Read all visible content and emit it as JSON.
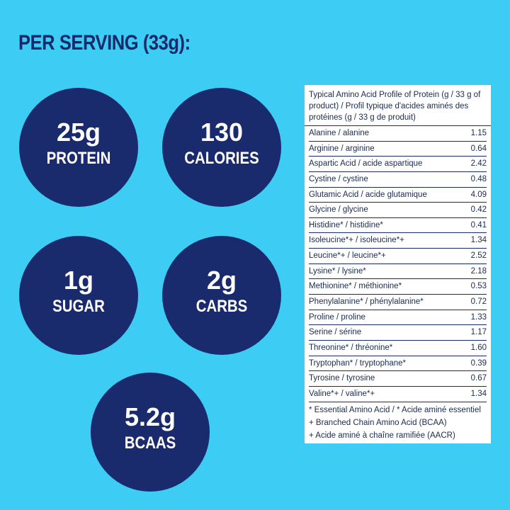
{
  "header": {
    "title": "PER SERVING (33g):"
  },
  "circles": [
    {
      "value": "25g",
      "label": "PROTEIN"
    },
    {
      "value": "130",
      "label": "CALORIES"
    },
    {
      "value": "1g",
      "label": "SUGAR"
    },
    {
      "value": "2g",
      "label": "CARBS"
    },
    {
      "value": "5.2g",
      "label": "BCAAS"
    }
  ],
  "table": {
    "title": "Typical Amino Acid Profile of Protein (g / 33 g of product) / Profil typique d'acides aminés des protéines (g / 33 g de produit)",
    "rows": [
      [
        "Alanine / alanine",
        "1.15"
      ],
      [
        "Arginine / arginine",
        "0.64"
      ],
      [
        "Aspartic Acid / acide aspartique",
        "2.42"
      ],
      [
        "Cystine / cystine",
        "0.48"
      ],
      [
        "Glutamic Acid / acide glutamique",
        "4.09"
      ],
      [
        "Glycine / glycine",
        "0.42"
      ],
      [
        "Histidine* / histidine*",
        "0.41"
      ],
      [
        "Isoleucine*+ / isoleucine*+",
        "1.34"
      ],
      [
        "Leucine*+ / leucine*+",
        "2.52"
      ],
      [
        "Lysine* / lysine*",
        "2.18"
      ],
      [
        "Methionine* / méthionine*",
        "0.53"
      ],
      [
        "Phenylalanine* / phénylalanine*",
        "0.72"
      ],
      [
        "Proline / proline",
        "1.33"
      ],
      [
        "Serine / sérine",
        "1.17"
      ],
      [
        "Threonine* / thréonine*",
        "1.60"
      ],
      [
        "Tryptophan* / tryptophane*",
        "0.39"
      ],
      [
        "Tyrosine / tyrosine",
        "0.67"
      ],
      [
        "Valine*+ / valine*+",
        "1.34"
      ]
    ],
    "footnotes": [
      "* Essential Amino Acid / * Acide aminé essentiel",
      "+ Branched Chain Amino Acid (BCAA)",
      "+ Acide aminé à chaîne ramifiée (AACR)"
    ]
  }
}
